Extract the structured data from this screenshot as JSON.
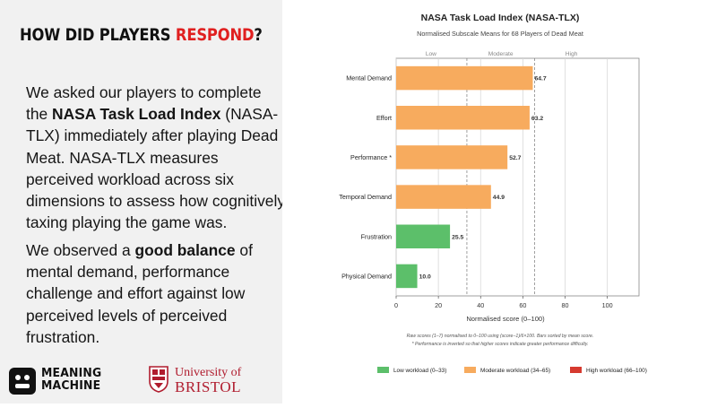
{
  "slide": {
    "headline_main": "HOW DID PLAYERS ",
    "headline_accent": "RESPOND",
    "headline_end": "?",
    "accent_color": "#e02020",
    "para1": [
      {
        "text": "We asked our players to complete the ",
        "bold": false
      },
      {
        "text": "NASA Task Load Index",
        "bold": true
      },
      {
        "text": " (NASA-TLX) immediately after playing Dead Meat. NASA-TLX measures perceived workload across six dimensions to assess how cognitively taxing playing the game was.",
        "bold": false
      }
    ],
    "para2": [
      {
        "text": "We observed a ",
        "bold": false
      },
      {
        "text": "good balance",
        "bold": true
      },
      {
        "text": " of mental demand, performance challenge and effort against low perceived levels of perceived frustration.",
        "bold": false
      }
    ],
    "logo_meaning_machine_line1": "MEANING",
    "logo_meaning_machine_line2": "MACHINE",
    "logo_uob_line1": "University of",
    "logo_uob_line2": "BRISTOL"
  },
  "chart_data": {
    "type": "bar",
    "orientation": "horizontal",
    "title": "NASA Task Load Index (NASA-TLX)",
    "subtitle": "Normalised Subscale Means for 68 Players of Dead Meat",
    "xlabel": "Normalised score (0–100)",
    "xlim": [
      0,
      115
    ],
    "xticks": [
      0,
      20,
      40,
      60,
      80,
      100
    ],
    "bands": [
      {
        "label": "Low",
        "from": 0,
        "to": 33
      },
      {
        "label": "Moderate",
        "from": 34,
        "to": 65
      },
      {
        "label": "High",
        "from": 66,
        "to": 100
      }
    ],
    "grid": true,
    "categories": [
      "Mental Demand",
      "Effort",
      "Performance *",
      "Temporal Demand",
      "Frustration",
      "Physical Demand"
    ],
    "values": [
      64.7,
      63.2,
      52.7,
      44.9,
      25.5,
      10.0
    ],
    "value_labels": [
      "64.7",
      "63.2",
      "52.7",
      "44.9",
      "25.5",
      "10.0"
    ],
    "bar_colors": [
      "#f7ab5e",
      "#f7ab5e",
      "#f7ab5e",
      "#f7ab5e",
      "#5cbf6a",
      "#5cbf6a"
    ],
    "footnotes": [
      "Raw scores (1–7) normalised to 0–100 using (score−1)/6×100. Bars sorted by mean score.",
      "* Performance is inverted so that higher scores indicate greater performance difficulty."
    ],
    "legend_position": "bottom",
    "legend": [
      {
        "label": "Low workload (0–33)",
        "color": "#5cbf6a"
      },
      {
        "label": "Moderate workload (34–65)",
        "color": "#f7ab5e"
      },
      {
        "label": "High workload (66–100)",
        "color": "#d63a2f"
      }
    ]
  }
}
